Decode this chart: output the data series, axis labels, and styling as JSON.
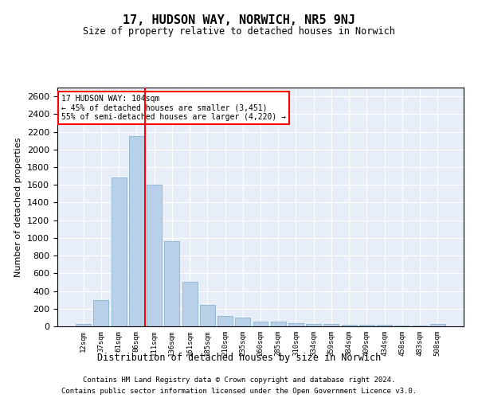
{
  "title": "17, HUDSON WAY, NORWICH, NR5 9NJ",
  "subtitle": "Size of property relative to detached houses in Norwich",
  "xlabel": "Distribution of detached houses by size in Norwich",
  "ylabel": "Number of detached properties",
  "categories": [
    "12sqm",
    "37sqm",
    "61sqm",
    "86sqm",
    "111sqm",
    "136sqm",
    "161sqm",
    "185sqm",
    "210sqm",
    "235sqm",
    "260sqm",
    "285sqm",
    "310sqm",
    "334sqm",
    "359sqm",
    "384sqm",
    "409sqm",
    "434sqm",
    "458sqm",
    "483sqm",
    "508sqm"
  ],
  "values": [
    25,
    300,
    1680,
    2150,
    1600,
    960,
    505,
    240,
    120,
    100,
    50,
    50,
    35,
    25,
    25,
    20,
    20,
    20,
    10,
    5,
    25
  ],
  "bar_color": "#b8d0e8",
  "bar_edge_color": "#7aaac8",
  "vline_x_index": 3.5,
  "vline_color": "red",
  "annotation_line1": "17 HUDSON WAY: 104sqm",
  "annotation_line2": "← 45% of detached houses are smaller (3,451)",
  "annotation_line3": "55% of semi-detached houses are larger (4,220) →",
  "annotation_box_color": "white",
  "annotation_box_edge_color": "red",
  "ylim": [
    0,
    2700
  ],
  "yticks": [
    0,
    200,
    400,
    600,
    800,
    1000,
    1200,
    1400,
    1600,
    1800,
    2000,
    2200,
    2400,
    2600
  ],
  "background_color": "#e8eef8",
  "grid_color": "white",
  "footer1": "Contains HM Land Registry data © Crown copyright and database right 2024.",
  "footer2": "Contains public sector information licensed under the Open Government Licence v3.0."
}
